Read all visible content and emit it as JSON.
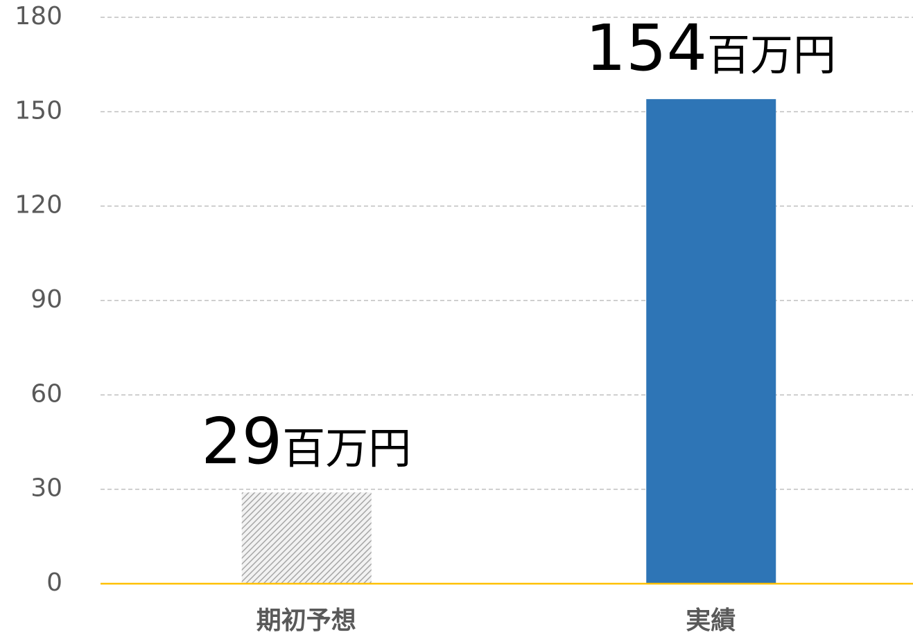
{
  "chart_data": {
    "type": "bar",
    "categories": [
      "期初予想",
      "実績"
    ],
    "values": [
      29,
      154
    ],
    "value_labels": [
      "29百万円",
      "154百万円"
    ],
    "colors": [
      "#a6a6a6",
      "#2e75b6"
    ],
    "patterns": [
      "hatch",
      null
    ],
    "axis_color": "#ffc000",
    "ylim": [
      0,
      180
    ],
    "yticks": [
      0,
      30,
      60,
      90,
      120,
      150,
      180
    ],
    "grid": true
  }
}
